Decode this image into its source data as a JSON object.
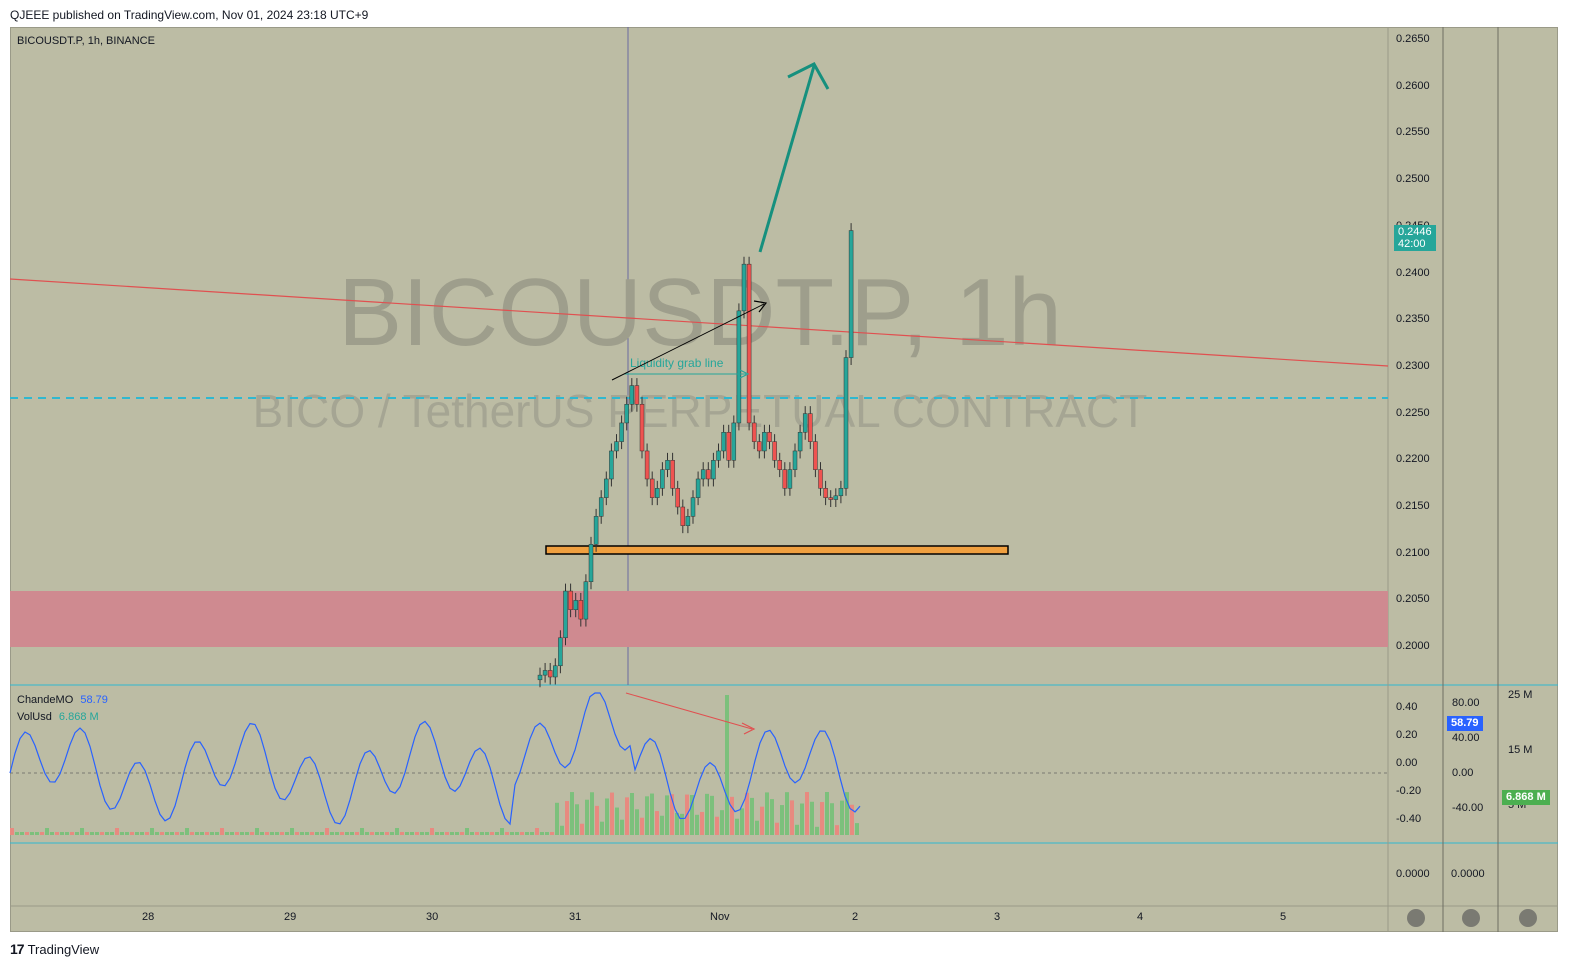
{
  "header": {
    "published_by": "QJEEE published on TradingView.com, Nov 01, 2024 23:18 UTC+9"
  },
  "footer": {
    "brand": "TradingView",
    "logo_glyph": "17"
  },
  "chart": {
    "symbol_line": "BICOUSDT.P, 1h, BINANCE",
    "watermark_symbol": "BICOUSDT.P, 1h",
    "watermark_desc": "BICO / TetherUS PERPETUAL CONTRACT",
    "annotation": "Liquidity grab line",
    "last_price": "0.2446",
    "countdown": "42:00",
    "price_axis": [
      "0.2650",
      "0.2600",
      "0.2550",
      "0.2500",
      "0.2450",
      "0.2400",
      "0.2350",
      "0.2300",
      "0.2250",
      "0.2200",
      "0.2150",
      "0.2100",
      "0.2050",
      "0.2000"
    ],
    "time_axis": [
      "28",
      "29",
      "30",
      "31",
      "Nov",
      "2",
      "3",
      "4",
      "5"
    ]
  },
  "indicators": {
    "cmo_name": "ChandeMO",
    "cmo_value": "58.79",
    "vol_name": "VolUsd",
    "vol_value": "6.868 M",
    "cmo_axis": [
      "0.40",
      "0.20",
      "0.00",
      "-0.20",
      "-0.40"
    ],
    "cmo_axis2": [
      "80.00",
      "40.00",
      "0.00",
      "-40.00"
    ],
    "vol_axis": [
      "25 M",
      "15 M",
      "5 M"
    ],
    "cmo_chip": "58.79",
    "vol_chip": "6.868 M",
    "lower_axis": [
      "0.0000",
      "0.0000"
    ]
  },
  "colors": {
    "bull": "#26a69a",
    "bear": "#ef5350",
    "background": "#bcbca4",
    "cmo_line": "#2962ff",
    "trend_line": "#e05050",
    "level_dash": "#2fb8d0",
    "support_fill": "#f0a040",
    "supply_zone": "#cf7f8e"
  }
}
